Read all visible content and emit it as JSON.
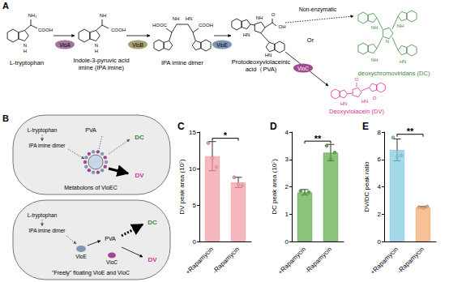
{
  "diagram": {
    "A": {
      "letter": "A",
      "molecules": [
        {
          "name": [
            "L-tryptophan"
          ],
          "atoms": [
            "NH₂",
            "COOH",
            "N",
            "H"
          ],
          "color": "#000000"
        },
        {
          "name": [
            "Indole-3-pyruvic acid",
            "imine (IPA imine)"
          ],
          "atoms": [
            "NH",
            "COOH",
            "N",
            "H"
          ],
          "color": "#000000"
        },
        {
          "name": [
            "IPA imine dimer"
          ],
          "atoms": [
            "HOOC",
            "NH",
            "HN",
            "COOH"
          ],
          "color": "#000000"
        },
        {
          "name": [
            "Protodeoxyviolaceinic",
            "acid（PVA)"
          ],
          "atoms": [
            "HN",
            "NH",
            "OH",
            "O",
            "HN"
          ],
          "color": "#000000"
        },
        {
          "name": [
            "deoxychromoviridans (DC)"
          ],
          "atoms": [
            "NH",
            "NH",
            "N",
            "NH",
            "HN"
          ],
          "color": "#3a8a3a"
        },
        {
          "name": [
            "Deoxyviolacein (DV)"
          ],
          "atoms": [
            "HN",
            "O",
            "HN",
            "O"
          ],
          "color": "#d6309a"
        }
      ],
      "enzymes": [
        {
          "name": "VioA",
          "color": "#a0789c"
        },
        {
          "name": "VioB",
          "color": "#a8a070"
        },
        {
          "name": "VioE",
          "color": "#8094b4"
        },
        {
          "name": "VioC",
          "color": "#a04890"
        }
      ],
      "non_enzymatic": "Non-enzymatic",
      "or": "Or"
    },
    "B": {
      "letter": "B",
      "cells": [
        {
          "substrate": "L-tryptophan",
          "intermediate": "IPA imine dimer",
          "pva": "PVA",
          "dc": "DC",
          "dv": "DV",
          "caption": "Metabolons of VioEC"
        },
        {
          "substrate": "L-tryptophan",
          "intermediate": "IPA imine dimer",
          "pva": "PVA",
          "dc": "DC",
          "dv": "DV",
          "caption": "\"Freely\" floating VioE and VioC",
          "enzymes": [
            "VioE",
            "VioC"
          ]
        }
      ]
    }
  },
  "chart_data": [
    {
      "type": "bar",
      "title": "C",
      "ylabel": "DV peak area (10⁷)",
      "categories": [
        "+Rapamycin",
        "-Rapamycin"
      ],
      "values": [
        11.7,
        8.1
      ],
      "errors": [
        2.0,
        0.7
      ],
      "points": [
        [
          13.5,
          11.5,
          10.2
        ],
        [
          8.8,
          7.8,
          7.7
        ]
      ],
      "color": "#f29aa2",
      "ylim": [
        0,
        15
      ],
      "yticks": [
        0,
        5,
        10,
        15
      ],
      "significance": "*"
    },
    {
      "type": "bar",
      "title": "D",
      "ylabel": "DC peak area (10⁷)",
      "categories": [
        "+Rapamycin",
        "-Rapamycin"
      ],
      "values": [
        1.8,
        3.25
      ],
      "errors": [
        0.1,
        0.3
      ],
      "points": [
        [
          1.85,
          1.75,
          1.8
        ],
        [
          3.5,
          3.0,
          3.25
        ]
      ],
      "color": "#5aa845",
      "ylim": [
        0,
        4
      ],
      "yticks": [
        0,
        1,
        2,
        3,
        4
      ],
      "significance": "**"
    },
    {
      "type": "bar",
      "title": "E",
      "ylabel": "DV/DC peak ratio",
      "categories": [
        "+Rapamycin",
        "-Rapamycin"
      ],
      "values": [
        6.7,
        2.5
      ],
      "errors": [
        0.8,
        0.05
      ],
      "points": [
        [
          7.6,
          6.2,
          6.3
        ],
        [
          2.5,
          2.45,
          2.55
        ]
      ],
      "colors": [
        "#7fc8e0",
        "#f2a66a"
      ],
      "ylim": [
        0,
        8
      ],
      "yticks": [
        0,
        2,
        4,
        6,
        8
      ],
      "significance": "**"
    }
  ]
}
